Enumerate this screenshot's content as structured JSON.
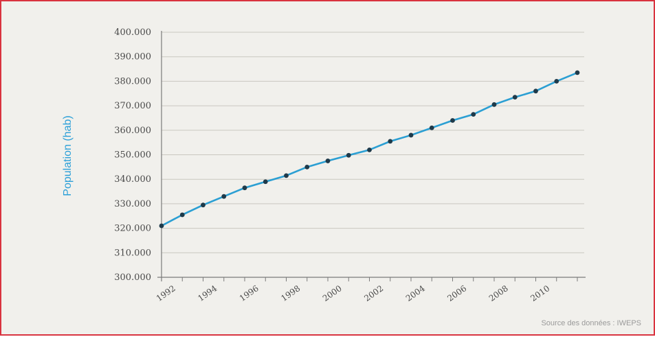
{
  "chart_data": {
    "type": "line",
    "ylabel": "Population (hab)",
    "ylim": [
      300000,
      400000
    ],
    "yticks": [
      300000,
      310000,
      320000,
      330000,
      340000,
      350000,
      360000,
      370000,
      380000,
      390000,
      400000
    ],
    "ytick_labels": [
      "300.000",
      "310.000",
      "320.000",
      "330.000",
      "340.000",
      "350.000",
      "360.000",
      "370.000",
      "380.000",
      "390.000",
      "400.000"
    ],
    "xlim": [
      1991.5,
      2011.5
    ],
    "xticks": [
      1991.5,
      1992.5,
      1993.5,
      1994.5,
      1995.5,
      1996.5,
      1997.5,
      1998.5,
      1999.5,
      2000.5,
      2001.5,
      2002.5,
      2003.5,
      2004.5,
      2005.5,
      2006.5,
      2007.5,
      2008.5,
      2009.5,
      2010.5,
      2011.5
    ],
    "xtick_labels": [
      "1992",
      "1994",
      "1996",
      "1998",
      "2000",
      "2002",
      "2004",
      "2006",
      "2008",
      "2010"
    ],
    "xtick_label_years": [
      1992,
      1994,
      1996,
      1998,
      2000,
      2002,
      2004,
      2006,
      2008,
      2010
    ],
    "grid": "horizontal",
    "series": [
      {
        "color": "#2b9fd3",
        "marker_color": "#1f3a4a",
        "x": [
          1991.5,
          1992.5,
          1993.5,
          1994.5,
          1995.5,
          1996.5,
          1997.5,
          1998.5,
          1999.5,
          2000.5,
          2001.5,
          2002.5,
          2003.5,
          2004.5,
          2005.5,
          2006.5,
          2007.5,
          2008.5,
          2009.5,
          2010.5,
          2011.5
        ],
        "values": [
          321000,
          325500,
          329500,
          333000,
          336500,
          339000,
          341500,
          345000,
          347500,
          349800,
          352000,
          355500,
          358000,
          361000,
          364000,
          366500,
          370500,
          373500,
          376000,
          380000,
          383500
        ]
      }
    ],
    "source": "Source des données : IWEPS"
  }
}
